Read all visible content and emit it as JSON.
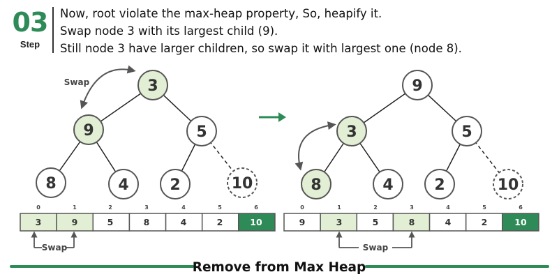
{
  "step": {
    "number": "03",
    "label": "Step"
  },
  "description": [
    "Now, root violate the max-heap property, So, heapify it.",
    "Swap node 3 with its largest child (9).",
    "Still node 3 have larger children, so swap it with largest one (node 8)."
  ],
  "colors": {
    "accent": "#2e8b57",
    "arrow": "#2e8b57",
    "node_fill": "#ffffff",
    "node_highlight": "#e2efd4",
    "node_stroke": "#555555",
    "removed_cell": "#2e8b57"
  },
  "left_tree": {
    "swap_label": "Swap",
    "nodes": [
      "3",
      "9",
      "5",
      "8",
      "4",
      "2",
      "10"
    ],
    "highlighted": [
      0,
      1
    ],
    "removed": [
      6
    ]
  },
  "right_tree": {
    "nodes": [
      "9",
      "3",
      "5",
      "8",
      "4",
      "2",
      "10"
    ],
    "highlighted": [
      1,
      3
    ],
    "removed": [
      6
    ]
  },
  "left_array": {
    "indices": [
      "0",
      "1",
      "2",
      "3",
      "4",
      "5",
      "6"
    ],
    "values": [
      "3",
      "9",
      "5",
      "8",
      "4",
      "2",
      "10"
    ],
    "highlighted": [
      0,
      1
    ],
    "removed": [
      6
    ],
    "swap_label": "Swap"
  },
  "right_array": {
    "indices": [
      "0",
      "1",
      "2",
      "3",
      "4",
      "5",
      "6"
    ],
    "values": [
      "9",
      "3",
      "5",
      "8",
      "4",
      "2",
      "10"
    ],
    "highlighted": [
      1,
      3
    ],
    "removed": [
      6
    ],
    "swap_label": "Swap"
  },
  "footer": {
    "title": "Remove from Max Heap"
  }
}
